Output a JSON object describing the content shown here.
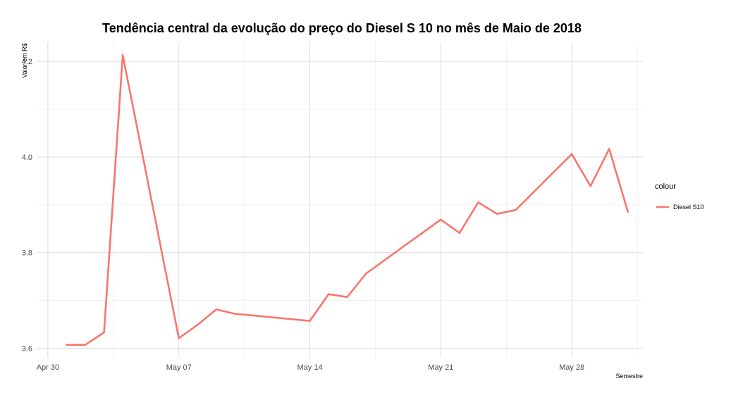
{
  "chart_data": {
    "type": "line",
    "title": "Tendência central da evolução do preço do Diesel S 10 no mês de Maio de 2018",
    "xlabel": "Semestre",
    "ylabel": "Valor em R$",
    "x_tick_labels": [
      "Apr 30",
      "May 07",
      "May 14",
      "May 21",
      "May 28"
    ],
    "x_tick_days": [
      0,
      7,
      14,
      21,
      28
    ],
    "y_ticks": [
      3.6,
      3.8,
      4.0,
      4.2
    ],
    "y_tick_labels": [
      "3.6",
      "3.8",
      "4.0",
      "4.2"
    ],
    "xlim_days": [
      -0.6,
      31.8
    ],
    "ylim": [
      3.58,
      4.24
    ],
    "grid": true,
    "legend": {
      "title": "colour",
      "position": "right",
      "entries": [
        "Diesel S10"
      ]
    },
    "series": [
      {
        "name": "Diesel S10",
        "color": "#f8766d",
        "x_days": [
          1,
          2,
          3,
          4,
          7,
          8,
          9,
          10,
          14,
          15,
          16,
          17,
          21,
          22,
          23,
          24,
          25,
          28,
          29,
          30,
          31
        ],
        "y": [
          3.607,
          3.607,
          3.633,
          4.213,
          3.621,
          3.649,
          3.681,
          3.672,
          3.657,
          3.713,
          3.707,
          3.756,
          3.869,
          3.841,
          3.905,
          3.881,
          3.889,
          4.006,
          3.939,
          4.017,
          3.885
        ]
      }
    ]
  }
}
